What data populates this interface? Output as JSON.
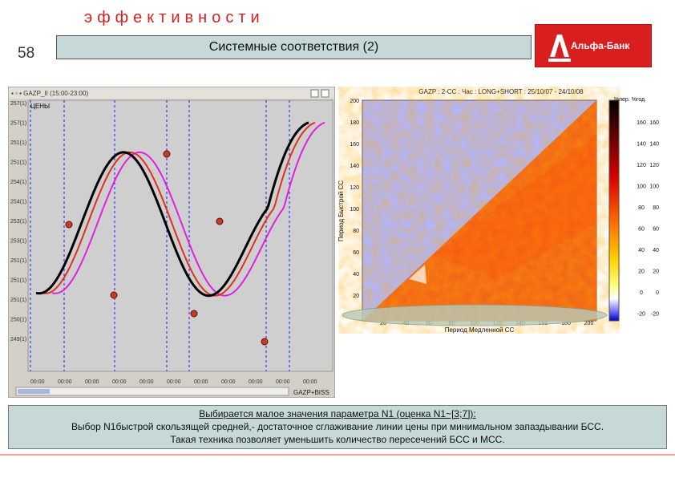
{
  "header": {
    "word": "эффективности",
    "slide_number": "58",
    "title": "Системные соответствия (2)"
  },
  "logo": {
    "text": "Альфа-Банк",
    "color": "#d81e1e"
  },
  "left_chart": {
    "window_title": "▪ ▫ ▪ GAZP_II (15:00-23:00)",
    "label": "ЦЕНЫ",
    "y_ticks": [
      "257(1)",
      "257(1)",
      "251(1)",
      "251(1)",
      "254(1)",
      "254(1)",
      "253(1)",
      "253(1)",
      "251(1)",
      "251(1)",
      "251(1)",
      "250(1)",
      "249(1)"
    ],
    "x_ticks": [
      "00:00",
      "00:00",
      "00:00",
      "00:00",
      "00:00",
      "00:00",
      "00:00",
      "00:00",
      "00:00",
      "00:00",
      "00:00"
    ],
    "bottom_label": "GAZP+BISS",
    "colors": {
      "price": "#000000",
      "fast_ma": "#e03020",
      "slow_ma": "#e020e0",
      "marker": "#c83a28",
      "grid_v": "#1a1aff"
    }
  },
  "heatmap": {
    "title": "GAZP : 2-CC : Час : LONG+SHORT : 25/10/07 - 24/10/08",
    "xlabel": "Период Медленной СС",
    "ylabel": "Период Быстрой СС",
    "legend_title": "%пер. %год.",
    "y_ticks": [
      "200",
      "180",
      "160",
      "140",
      "120",
      "100",
      "80",
      "60",
      "40",
      "20"
    ],
    "x_ticks": [
      "20",
      "40",
      "60",
      "80",
      "100",
      "120",
      "140",
      "160",
      "180",
      "200"
    ],
    "legend_left": [
      "160",
      "140",
      "120",
      "100",
      "80",
      "60",
      "40",
      "20",
      "0",
      "-20"
    ],
    "legend_right": [
      "160",
      "140",
      "120",
      "100",
      "80",
      "60",
      "40",
      "20",
      "0",
      "-20"
    ]
  },
  "caption": {
    "line1": "Выбирается малое значения параметра N1 (оценка N1~[3;7]):",
    "line2": "Выбор N1быстрой скользящей средней,- достаточное сглаживание линии цены при минимальном запаздывании БСС.",
    "line3": "Такая техника позволяет уменьшить количество пересечений БСС и МСС."
  }
}
